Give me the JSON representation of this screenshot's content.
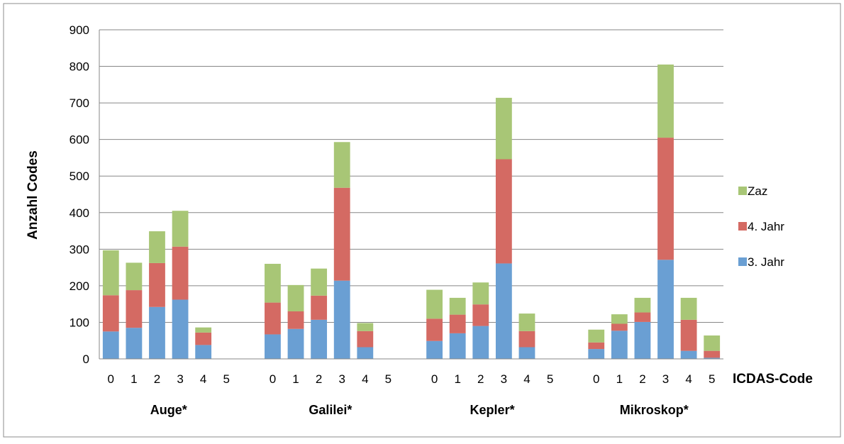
{
  "chart_data": {
    "type": "bar",
    "stacked": true,
    "title": "",
    "ylabel": "Anzahl Codes",
    "xlabel": "ICDAS-Code",
    "ylim": [
      0,
      900
    ],
    "yticks": [
      0,
      100,
      200,
      300,
      400,
      500,
      600,
      700,
      800,
      900
    ],
    "grid": true,
    "legend_position": "right",
    "codes": [
      "0",
      "1",
      "2",
      "3",
      "4",
      "5"
    ],
    "groups": [
      "Auge*",
      "Galilei*",
      "Kepler*",
      "Mikroskop*"
    ],
    "series": [
      {
        "name": "3. Jahr",
        "color": "#6A9FD3",
        "values": [
          [
            75,
            85,
            142,
            162,
            38,
            0
          ],
          [
            67,
            82,
            107,
            214,
            32,
            0
          ],
          [
            49,
            70,
            90,
            261,
            32,
            0
          ],
          [
            27,
            77,
            101,
            271,
            22,
            3
          ]
        ]
      },
      {
        "name": "4. Jahr",
        "color": "#D46A63",
        "values": [
          [
            99,
            103,
            120,
            145,
            34,
            0
          ],
          [
            87,
            48,
            66,
            254,
            44,
            0
          ],
          [
            61,
            51,
            59,
            285,
            44,
            0
          ],
          [
            18,
            19,
            26,
            334,
            85,
            19
          ]
        ]
      },
      {
        "name": "Zaz",
        "color": "#A8C676",
        "values": [
          [
            123,
            75,
            87,
            98,
            14,
            0
          ],
          [
            106,
            72,
            74,
            125,
            22,
            0
          ],
          [
            79,
            46,
            60,
            168,
            48,
            0
          ],
          [
            35,
            26,
            40,
            200,
            60,
            42
          ]
        ]
      }
    ]
  }
}
